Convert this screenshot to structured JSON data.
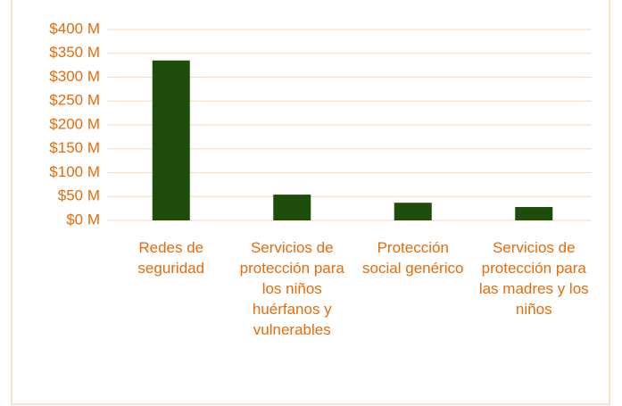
{
  "chart_data": {
    "type": "bar",
    "categories": [
      "Redes de seguridad",
      "Servicios de protección para los niños huérfanos y vulnerables",
      "Protección social genérico",
      "Servicios de protección para las madres y los niños"
    ],
    "values": [
      335,
      54,
      37,
      28
    ],
    "color": "#1e4d0b",
    "ylim": [
      0,
      400
    ],
    "yticks": [
      {
        "value": 0,
        "label": "$0 M"
      },
      {
        "value": 50,
        "label": "$50 M"
      },
      {
        "value": 100,
        "label": "$100 M"
      },
      {
        "value": 150,
        "label": "$150 M"
      },
      {
        "value": 200,
        "label": "$200 M"
      },
      {
        "value": 250,
        "label": "$250 M"
      },
      {
        "value": 300,
        "label": "$300 M"
      },
      {
        "value": 350,
        "label": "$350 M"
      },
      {
        "value": 400,
        "label": "$400 M"
      }
    ],
    "grid": true
  }
}
